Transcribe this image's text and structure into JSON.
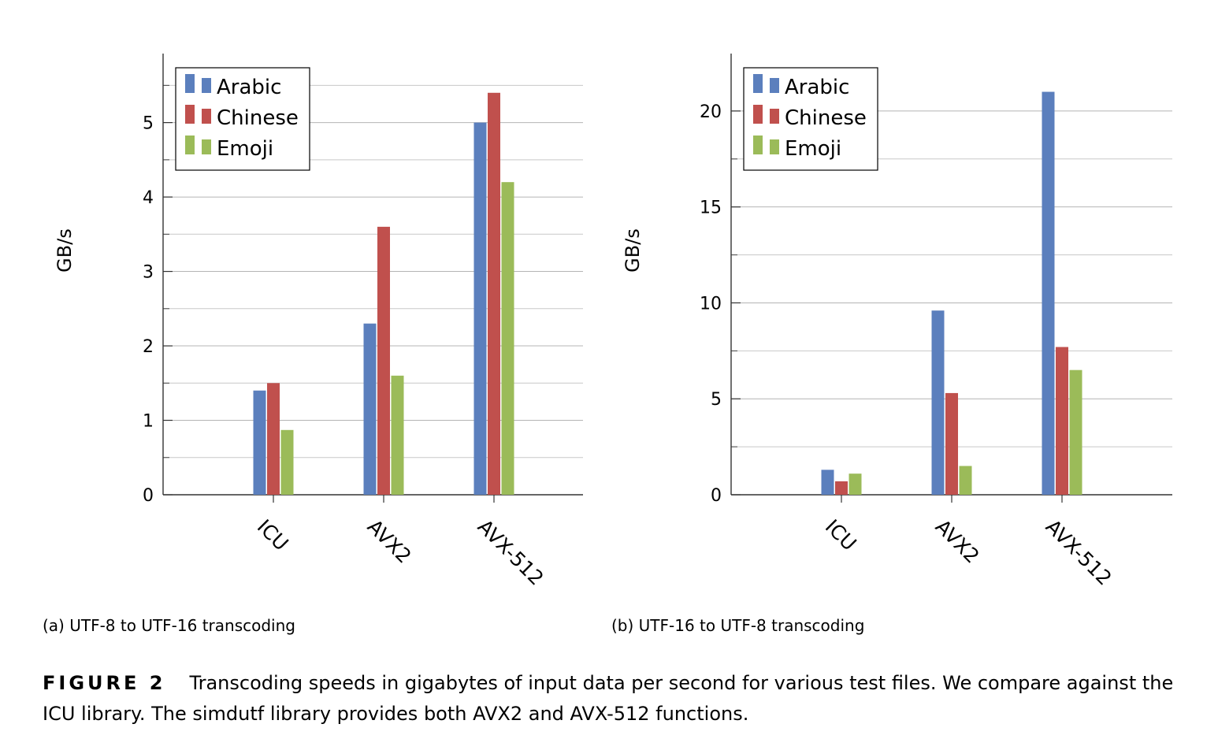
{
  "chart_data": [
    {
      "type": "bar",
      "categories": [
        "ICU",
        "AVX2",
        "AVX-512"
      ],
      "series": [
        {
          "name": "Arabic",
          "values": [
            1.4,
            2.3,
            5.0
          ],
          "color": "#5b7fbd"
        },
        {
          "name": "Chinese",
          "values": [
            1.5,
            3.6,
            5.4
          ],
          "color": "#c0504d"
        },
        {
          "name": "Emoji",
          "values": [
            0.87,
            1.6,
            4.2
          ],
          "color": "#9bbb59"
        }
      ],
      "ylabel": "GB/s",
      "ylim": [
        0,
        5.8
      ],
      "yticks": [
        0,
        1,
        2,
        3,
        4,
        5
      ],
      "grid": true,
      "legend": "top-left",
      "subcaption": "(a) UTF-8 to UTF-16 transcoding"
    },
    {
      "type": "bar",
      "categories": [
        "ICU",
        "AVX2",
        "AVX-512"
      ],
      "series": [
        {
          "name": "Arabic",
          "values": [
            1.3,
            9.6,
            21.0
          ],
          "color": "#5b7fbd"
        },
        {
          "name": "Chinese",
          "values": [
            0.7,
            5.3,
            7.7
          ],
          "color": "#c0504d"
        },
        {
          "name": "Emoji",
          "values": [
            1.1,
            1.5,
            6.5
          ],
          "color": "#9bbb59"
        }
      ],
      "ylabel": "GB/s",
      "ylim": [
        0,
        22.5
      ],
      "yticks": [
        0,
        5,
        10,
        15,
        20
      ],
      "grid": true,
      "legend": "top-left",
      "subcaption": "(b) UTF-16 to UTF-8 transcoding"
    }
  ],
  "caption": {
    "label": "FIGURE 2",
    "text": "Transcoding speeds in gigabytes of input data per second for various test files. We compare against the ICU library. The simdutf library provides both AVX2 and AVX-512 functions."
  }
}
